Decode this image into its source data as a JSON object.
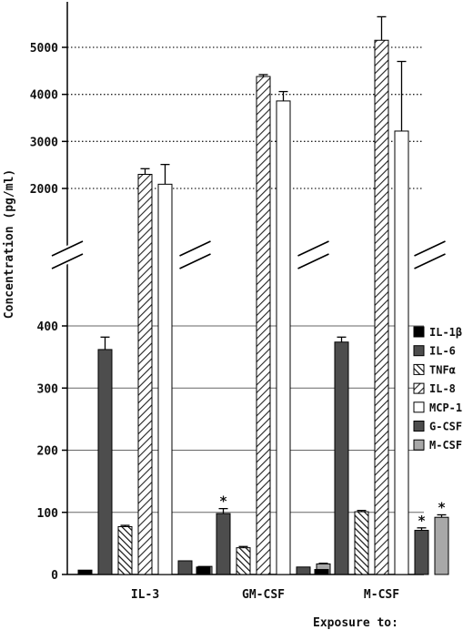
{
  "chart_data": {
    "type": "bar",
    "xlabel": "Exposure to:",
    "ylabel": "Concentration (pg/ml)",
    "categories": [
      "IL-3",
      "GM-CSF",
      "M-CSF"
    ],
    "axis_break": true,
    "lower_ticks": [
      "0",
      "100",
      "200",
      "300",
      "400"
    ],
    "upper_ticks": [
      "2000",
      "3000",
      "4000",
      "5000"
    ],
    "legend_position": "right",
    "series": [
      {
        "name": "IL-1β",
        "values": [
          7,
          12,
          8
        ],
        "errors": [
          0,
          0,
          0
        ],
        "pattern": "black",
        "color": "#000000"
      },
      {
        "name": "IL-6",
        "values": [
          362,
          98,
          374
        ],
        "errors": [
          20,
          8,
          8
        ],
        "pattern": "darkgray",
        "color": "#555555"
      },
      {
        "name": "TNFα",
        "values": [
          77,
          43,
          101
        ],
        "errors": [
          2,
          2,
          2
        ],
        "pattern": "backslash",
        "color": "#333333"
      },
      {
        "name": "IL-8",
        "values": [
          2300,
          4380,
          5150
        ],
        "errors": [
          120,
          40,
          500
        ],
        "pattern": "slash",
        "color": "#333333"
      },
      {
        "name": "MCP-1",
        "values": [
          2090,
          3860,
          3220
        ],
        "errors": [
          420,
          200,
          1480
        ],
        "pattern": "white",
        "color": "#ffffff"
      },
      {
        "name": "G-CSF",
        "values": [
          22,
          12,
          71
        ],
        "errors": [
          0,
          0,
          4
        ],
        "pattern": "darkgray",
        "color": "#555555"
      },
      {
        "name": "M-CSF",
        "values": [
          13,
          17,
          92
        ],
        "errors": [
          0,
          1,
          4
        ],
        "pattern": "lightgray",
        "color": "#aaaaaa"
      }
    ],
    "annotations": [
      {
        "category": "GM-CSF",
        "series": "IL-6",
        "text": "*"
      },
      {
        "category": "M-CSF",
        "series": "G-CSF",
        "text": "*"
      },
      {
        "category": "M-CSF",
        "series": "M-CSF",
        "text": "*"
      }
    ]
  }
}
